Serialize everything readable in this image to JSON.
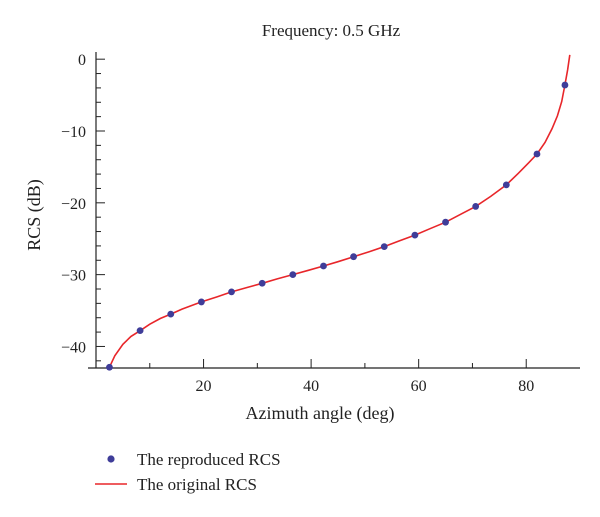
{
  "chart_data": {
    "type": "line",
    "title": "Frequency: 0.5 GHz",
    "xlabel": "Azimuth angle (deg)",
    "ylabel": "RCS (dB)",
    "xlim": [
      0,
      90
    ],
    "ylim": [
      -43,
      1
    ],
    "xticks": [
      20,
      40,
      60,
      80
    ],
    "yticks": [
      0,
      -10,
      -20,
      -30,
      -40
    ],
    "ytick_labels": [
      "0",
      "−10",
      "−20",
      "−30",
      "−40"
    ],
    "grid": false,
    "legend_position": "bottom-left",
    "series": [
      {
        "name": "The reproduced RCS",
        "style": "points",
        "color": "#3f3d99",
        "x": [
          2.5,
          8.2,
          13.9,
          19.6,
          25.2,
          30.9,
          36.6,
          42.3,
          47.9,
          53.6,
          59.3,
          65.0,
          70.6,
          76.3,
          82.0,
          87.2
        ],
        "y": [
          -42.9,
          -37.8,
          -35.5,
          -33.8,
          -32.4,
          -31.2,
          -30.0,
          -28.8,
          -27.5,
          -26.1,
          -24.5,
          -22.7,
          -20.5,
          -17.5,
          -13.2,
          -3.6
        ]
      },
      {
        "name": "The original RCS",
        "style": "line",
        "color": "#e8262a",
        "x": [
          2.5,
          3.5,
          5,
          6.5,
          8.2,
          10,
          12,
          13.9,
          16,
          19.6,
          22.5,
          25.2,
          28,
          30.9,
          33.7,
          36.6,
          39.5,
          42.3,
          45,
          47.9,
          50.8,
          53.6,
          56.4,
          59.3,
          62.1,
          65.0,
          67.8,
          70.6,
          73.4,
          76.3,
          78.5,
          80.5,
          82.0,
          83.5,
          84.8,
          85.8,
          86.6,
          87.2,
          87.7,
          88.1
        ],
        "y": [
          -42.9,
          -41.3,
          -39.7,
          -38.6,
          -37.8,
          -36.9,
          -36.1,
          -35.5,
          -34.8,
          -33.8,
          -33.1,
          -32.4,
          -31.8,
          -31.2,
          -30.6,
          -30.0,
          -29.4,
          -28.8,
          -28.2,
          -27.5,
          -26.8,
          -26.1,
          -25.3,
          -24.5,
          -23.6,
          -22.7,
          -21.6,
          -20.5,
          -19.1,
          -17.5,
          -15.9,
          -14.4,
          -13.2,
          -11.6,
          -9.7,
          -7.9,
          -5.9,
          -3.6,
          -1.5,
          0.6
        ]
      }
    ]
  }
}
